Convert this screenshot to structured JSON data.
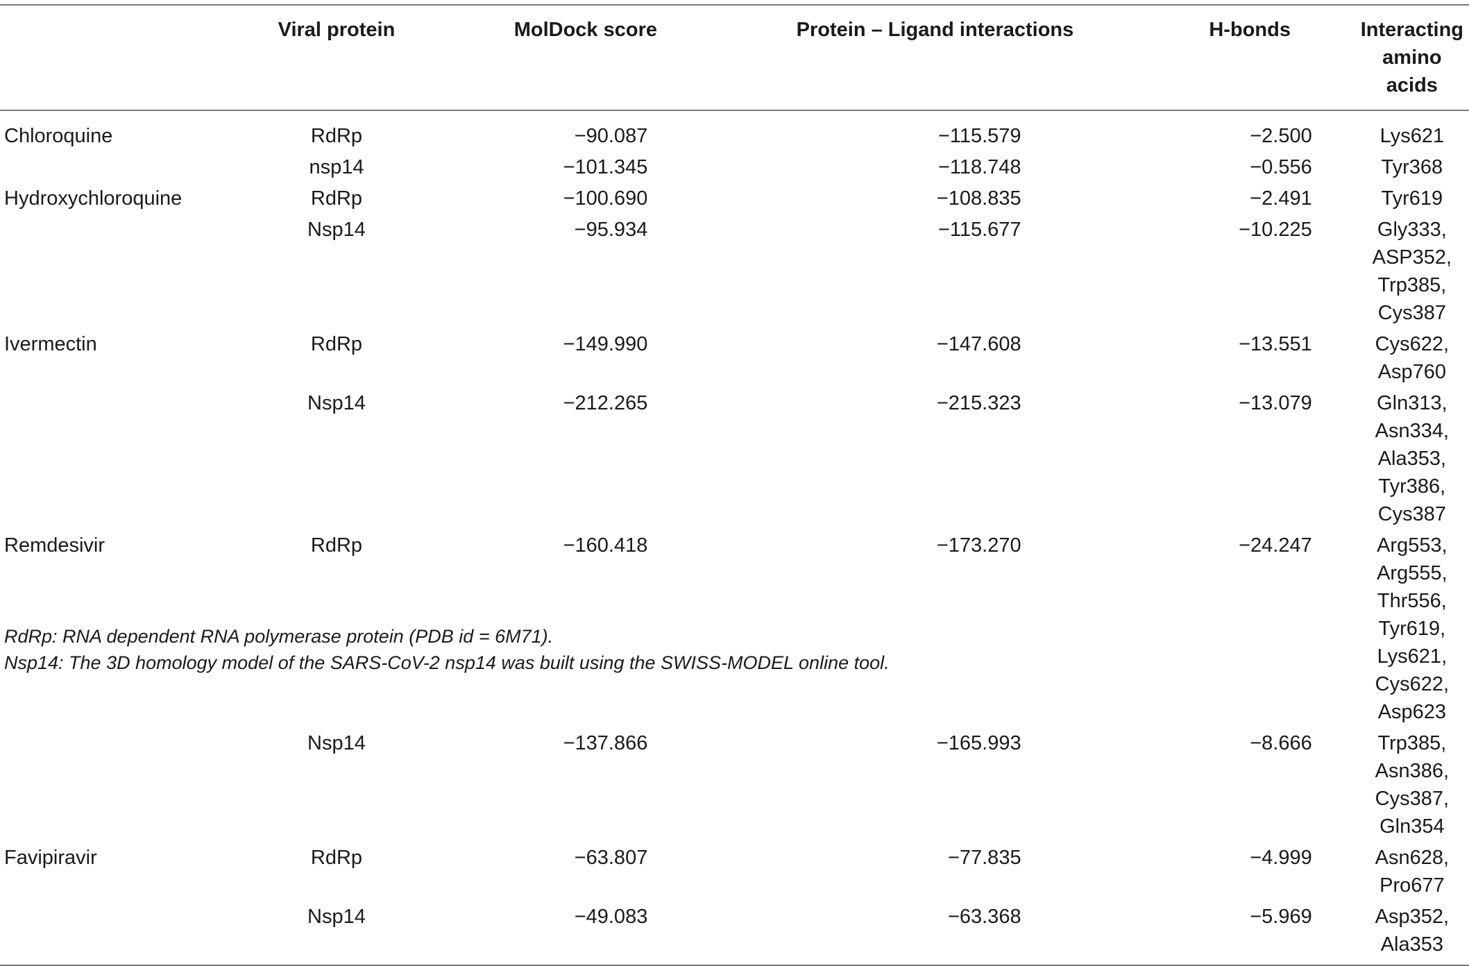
{
  "headers": {
    "drug": "",
    "viral_protein": "Viral protein",
    "moldock": "MolDock score",
    "interactions": "Protein – Ligand interactions",
    "hbonds": "H-bonds",
    "amino_acids": "Interacting amino acids"
  },
  "rows": [
    {
      "drug": "Chloroquine",
      "protein": "RdRp",
      "moldock": "−90.087",
      "interactions": "−115.579",
      "hbonds": "−2.500",
      "amino_acids": "Lys621"
    },
    {
      "drug": "",
      "protein": "nsp14",
      "moldock": "−101.345",
      "interactions": "−118.748",
      "hbonds": "−0.556",
      "amino_acids": "Tyr368"
    },
    {
      "drug": "Hydroxychloroquine",
      "protein": "RdRp",
      "moldock": "−100.690",
      "interactions": "−108.835",
      "hbonds": "−2.491",
      "amino_acids": "Tyr619"
    },
    {
      "drug": "",
      "protein": "Nsp14",
      "moldock": "−95.934",
      "interactions": "−115.677",
      "hbonds": "−10.225",
      "amino_acids": "Gly333, ASP352, Trp385, Cys387"
    },
    {
      "drug": "Ivermectin",
      "protein": "RdRp",
      "moldock": "−149.990",
      "interactions": "−147.608",
      "hbonds": "−13.551",
      "amino_acids": "Cys622, Asp760"
    },
    {
      "drug": "",
      "protein": "Nsp14",
      "moldock": "−212.265",
      "interactions": "−215.323",
      "hbonds": "−13.079",
      "amino_acids": "Gln313, Asn334, Ala353, Tyr386, Cys387"
    },
    {
      "drug": "Remdesivir",
      "protein": "RdRp",
      "moldock": "−160.418",
      "interactions": "−173.270",
      "hbonds": "−24.247",
      "amino_acids": "Arg553, Arg555, Thr556, Tyr619, Lys621, Cys622, Asp623"
    },
    {
      "drug": "",
      "protein": "Nsp14",
      "moldock": "−137.866",
      "interactions": "−165.993",
      "hbonds": "−8.666",
      "amino_acids": "Trp385, Asn386, Cys387, Gln354"
    },
    {
      "drug": "Favipiravir",
      "protein": "RdRp",
      "moldock": "−63.807",
      "interactions": "−77.835",
      "hbonds": "−4.999",
      "amino_acids": "Asn628, Pro677"
    },
    {
      "drug": "",
      "protein": "Nsp14",
      "moldock": "−49.083",
      "interactions": "−63.368",
      "hbonds": "−5.969",
      "amino_acids": "Asp352, Ala353"
    }
  ],
  "footnotes": [
    "RdRp: RNA dependent RNA polymerase protein (PDB id = 6M71).",
    "Nsp14: The 3D homology model of the SARS-CoV-2 nsp14 was built using the SWISS-MODEL online tool."
  ]
}
